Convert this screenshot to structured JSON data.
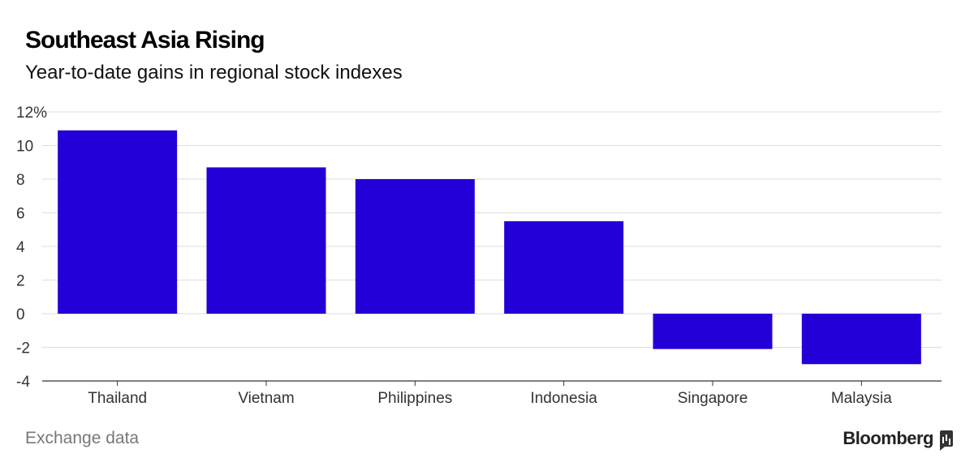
{
  "header": {
    "title": "Southeast Asia Rising",
    "subtitle": "Year-to-date gains in regional stock indexes"
  },
  "footer": {
    "source": "Exchange data",
    "brand": "Bloomberg"
  },
  "colors": {
    "bar": "#2400d8",
    "grid": "#dddddd",
    "axis": "#333333"
  },
  "chart_data": {
    "type": "bar",
    "categories": [
      "Thailand",
      "Vietnam",
      "Philippines",
      "Indonesia",
      "Singapore",
      "Malaysia"
    ],
    "values": [
      10.9,
      8.7,
      8.0,
      5.5,
      -2.1,
      -3.0
    ],
    "title": "Southeast Asia Rising",
    "subtitle": "Year-to-date gains in regional stock indexes",
    "xlabel": "",
    "ylabel": "",
    "ylim": [
      -4,
      12
    ],
    "yticks": [
      "12%",
      "10",
      "8",
      "6",
      "4",
      "2",
      "0",
      "-2",
      "-4"
    ],
    "grid": true,
    "legend": "none"
  }
}
